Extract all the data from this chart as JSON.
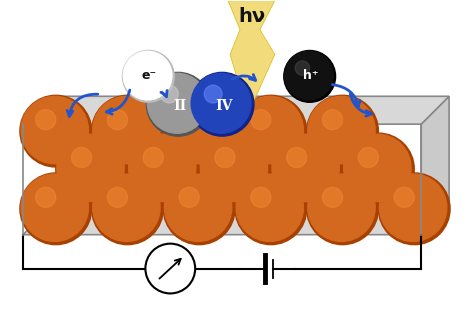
{
  "bg_color": "#ffffff",
  "orange_color": "#D2691E",
  "orange_dark": "#A84000",
  "gray_color": "#999999",
  "gray_dark": "#555555",
  "blue_color": "#2244BB",
  "blue_dark": "#112288",
  "light_fill": "#F0D870",
  "panel_color": "#D8D8D8",
  "panel_edge": "#888888",
  "label_II": "II",
  "label_IV": "IV",
  "label_eminus": "e⁻",
  "label_hplus": "h⁺",
  "hv_text": "hν",
  "arrow_color": "#2255CC"
}
